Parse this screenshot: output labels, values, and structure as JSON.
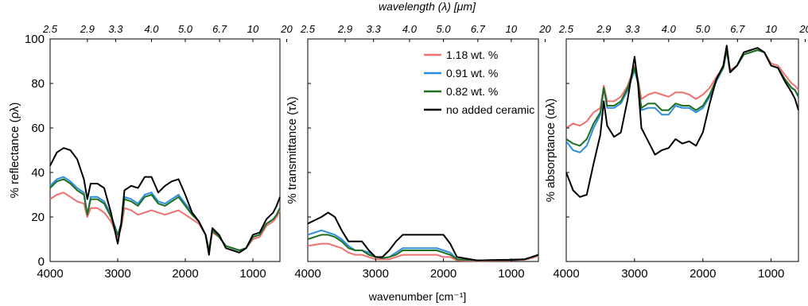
{
  "figure": {
    "top_axis_title": "wavelength (λ) [μm]",
    "bottom_axis_title": "wavenumber [cm⁻¹]"
  },
  "chart_data": [
    {
      "type": "line",
      "ylabel": "% reflectance (ρλ)",
      "xlabel": "wavenumber [cm⁻¹]",
      "xlim": [
        4000,
        600
      ],
      "ylim": [
        0,
        100
      ],
      "xticks": [
        4000,
        3000,
        2000,
        1000
      ],
      "yticks": [
        0,
        20,
        40,
        60,
        80,
        100
      ],
      "top_ticks": [
        "2.5",
        "2.9",
        "3.3",
        "4.0",
        "5.0",
        "6.7",
        "10",
        "20"
      ],
      "series": [
        {
          "name": "1.18 wt. %",
          "color": "#f07070",
          "x": [
            4000,
            3900,
            3800,
            3700,
            3600,
            3500,
            3450,
            3400,
            3300,
            3200,
            3100,
            3000,
            2950,
            2900,
            2800,
            2700,
            2600,
            2500,
            2400,
            2300,
            2200,
            2100,
            2000,
            1900,
            1800,
            1700,
            1650,
            1600,
            1500,
            1400,
            1300,
            1200,
            1100,
            1000,
            900,
            800,
            700,
            650,
            600
          ],
          "y": [
            28,
            30,
            31,
            29,
            27,
            26,
            20,
            24,
            24,
            22,
            18,
            11,
            15,
            24,
            23,
            21,
            22,
            23,
            22,
            21,
            22,
            23,
            21,
            19,
            17,
            12,
            5,
            13,
            11,
            7,
            6,
            5,
            6,
            10,
            11,
            16,
            18,
            20,
            23
          ]
        },
        {
          "name": "0.91 wt. %",
          "color": "#2a8fdf",
          "x": [
            4000,
            3900,
            3800,
            3700,
            3600,
            3500,
            3450,
            3400,
            3300,
            3200,
            3100,
            3000,
            2950,
            2900,
            2800,
            2700,
            2600,
            2500,
            2400,
            2300,
            2200,
            2100,
            2000,
            1900,
            1800,
            1700,
            1650,
            1600,
            1500,
            1400,
            1300,
            1200,
            1100,
            1000,
            900,
            800,
            700,
            650,
            600
          ],
          "y": [
            34,
            37,
            38,
            36,
            33,
            31,
            21,
            29,
            29,
            27,
            21,
            12,
            17,
            29,
            28,
            26,
            30,
            31,
            27,
            26,
            28,
            30,
            26,
            22,
            18,
            12,
            5,
            14,
            11,
            7,
            6,
            5,
            6,
            11,
            12,
            17,
            19,
            21,
            24
          ]
        },
        {
          "name": "0.82 wt. %",
          "color": "#1f6e1f",
          "x": [
            4000,
            3900,
            3800,
            3700,
            3600,
            3500,
            3450,
            3400,
            3300,
            3200,
            3100,
            3000,
            2950,
            2900,
            2800,
            2700,
            2600,
            2500,
            2400,
            2300,
            2200,
            2100,
            2000,
            1900,
            1800,
            1700,
            1650,
            1600,
            1500,
            1400,
            1300,
            1200,
            1100,
            1000,
            900,
            800,
            700,
            650,
            600
          ],
          "y": [
            33,
            36,
            37,
            35,
            32,
            30,
            21,
            28,
            28,
            26,
            20,
            12,
            16,
            28,
            27,
            25,
            29,
            30,
            26,
            25,
            27,
            29,
            25,
            21,
            18,
            12,
            5,
            14,
            11,
            7,
            6,
            5,
            6,
            11,
            12,
            17,
            19,
            21,
            24
          ]
        },
        {
          "name": "no added ceramic",
          "color": "#000000",
          "x": [
            4000,
            3900,
            3800,
            3700,
            3600,
            3500,
            3450,
            3400,
            3300,
            3200,
            3100,
            3000,
            2950,
            2900,
            2800,
            2700,
            2600,
            2500,
            2400,
            2300,
            2200,
            2100,
            2000,
            1900,
            1800,
            1700,
            1650,
            1600,
            1500,
            1400,
            1300,
            1200,
            1100,
            1000,
            900,
            800,
            700,
            650,
            600
          ],
          "y": [
            43,
            49,
            51,
            50,
            46,
            37,
            28,
            35,
            35,
            33,
            22,
            8,
            17,
            32,
            34,
            33,
            38,
            38,
            31,
            34,
            36,
            37,
            30,
            22,
            18,
            12,
            3,
            15,
            12,
            6,
            5,
            4,
            6,
            12,
            13,
            19,
            22,
            25,
            29
          ]
        }
      ]
    },
    {
      "type": "line",
      "ylabel": "% transmittance (τλ)",
      "xlabel": "wavenumber [cm⁻¹]",
      "xlim": [
        4000,
        600
      ],
      "ylim": [
        0,
        100
      ],
      "xticks": [
        4000,
        3000,
        2000,
        1000
      ],
      "top_ticks": [
        "2.5",
        "2.9",
        "3.3",
        "4.0",
        "5.0",
        "6.7",
        "10",
        "20"
      ],
      "legend": "top-right",
      "series": [
        {
          "name": "1.18 wt. %",
          "color": "#f07070",
          "x": [
            4000,
            3800,
            3700,
            3600,
            3500,
            3400,
            3300,
            3200,
            3100,
            3000,
            2900,
            2800,
            2700,
            2600,
            2500,
            2400,
            2300,
            2200,
            2100,
            2000,
            1900,
            1800,
            1500,
            1000,
            800,
            700,
            600
          ],
          "y": [
            7,
            8,
            8,
            7,
            6,
            4,
            3,
            3,
            2,
            1,
            1,
            1,
            2,
            3,
            3,
            3,
            3,
            3,
            3,
            2,
            2,
            0.5,
            0.3,
            0.5,
            0.8,
            1.5,
            2.5
          ]
        },
        {
          "name": "0.91 wt. %",
          "color": "#2a8fdf",
          "x": [
            4000,
            3800,
            3700,
            3600,
            3500,
            3400,
            3300,
            3200,
            3100,
            3000,
            2900,
            2800,
            2700,
            2600,
            2500,
            2400,
            2300,
            2200,
            2100,
            2000,
            1900,
            1800,
            1500,
            1000,
            800,
            700,
            600
          ],
          "y": [
            12,
            14,
            13,
            12,
            10,
            7,
            5,
            5,
            4,
            2,
            1.5,
            2,
            4,
            6,
            6,
            6,
            6,
            6,
            6,
            5,
            4,
            1,
            0.5,
            0.7,
            1,
            2,
            3
          ]
        },
        {
          "name": "0.82 wt. %",
          "color": "#1f6e1f",
          "x": [
            4000,
            3800,
            3700,
            3600,
            3500,
            3400,
            3300,
            3200,
            3100,
            3000,
            2900,
            2800,
            2700,
            2600,
            2500,
            2400,
            2300,
            2200,
            2100,
            2000,
            1900,
            1800,
            1500,
            1000,
            800,
            700,
            600
          ],
          "y": [
            10,
            12,
            12,
            11,
            9,
            6,
            5,
            5,
            3,
            2,
            1.5,
            2,
            3,
            5,
            5,
            5,
            5,
            5,
            5,
            4,
            3,
            1,
            0.5,
            0.7,
            1,
            2,
            3
          ]
        },
        {
          "name": "no added ceramic",
          "color": "#000000",
          "x": [
            4000,
            3800,
            3700,
            3600,
            3500,
            3400,
            3300,
            3200,
            3100,
            3000,
            2900,
            2800,
            2700,
            2600,
            2500,
            2400,
            2300,
            2200,
            2100,
            2000,
            1900,
            1800,
            1500,
            1000,
            800,
            700,
            600
          ],
          "y": [
            17,
            20,
            22,
            20,
            14,
            9,
            9,
            9,
            5,
            2,
            2,
            5,
            9,
            12,
            12,
            12,
            12,
            12,
            12,
            12,
            8,
            2,
            0.5,
            0.8,
            1,
            2,
            3
          ]
        }
      ]
    },
    {
      "type": "line",
      "ylabel": "% absorptance (αλ)",
      "xlabel": "wavenumber [cm⁻¹]",
      "xlim": [
        4000,
        600
      ],
      "ylim": [
        0,
        100
      ],
      "xticks": [
        4000,
        3000,
        2000,
        1000
      ],
      "top_ticks": [
        "2.5",
        "2.9",
        "3.3",
        "4.0",
        "5.0",
        "6.7",
        "10",
        "20"
      ],
      "series": [
        {
          "name": "1.18 wt. %",
          "color": "#f07070",
          "x": [
            4000,
            3900,
            3800,
            3700,
            3600,
            3500,
            3450,
            3400,
            3300,
            3200,
            3100,
            3000,
            2950,
            2900,
            2800,
            2700,
            2600,
            2500,
            2400,
            2300,
            2200,
            2100,
            2000,
            1900,
            1800,
            1700,
            1650,
            1600,
            1500,
            1400,
            1300,
            1200,
            1100,
            1000,
            900,
            800,
            700,
            650,
            600
          ],
          "y": [
            60,
            62,
            61,
            63,
            67,
            69,
            79,
            72,
            72,
            74,
            79,
            88,
            82,
            73,
            75,
            76,
            75,
            74,
            76,
            76,
            75,
            73,
            75,
            78,
            83,
            87,
            95,
            86,
            88,
            93,
            94,
            95,
            94,
            89,
            88,
            84,
            80,
            79,
            77
          ]
        },
        {
          "name": "0.91 wt. %",
          "color": "#2a8fdf",
          "x": [
            4000,
            3900,
            3800,
            3700,
            3600,
            3500,
            3450,
            3400,
            3300,
            3200,
            3100,
            3000,
            2950,
            2900,
            2800,
            2700,
            2600,
            2500,
            2400,
            2300,
            2200,
            2100,
            2000,
            1900,
            1800,
            1700,
            1650,
            1600,
            1500,
            1400,
            1300,
            1200,
            1100,
            1000,
            900,
            800,
            700,
            650,
            600
          ],
          "y": [
            54,
            50,
            49,
            52,
            60,
            66,
            78,
            69,
            69,
            71,
            77,
            86,
            80,
            68,
            69,
            69,
            66,
            66,
            70,
            69,
            69,
            67,
            69,
            74,
            81,
            87,
            95,
            85,
            88,
            93,
            94,
            95,
            94,
            88,
            87,
            82,
            78,
            77,
            74
          ]
        },
        {
          "name": "0.82 wt. %",
          "color": "#1f6e1f",
          "x": [
            4000,
            3900,
            3800,
            3700,
            3600,
            3500,
            3450,
            3400,
            3300,
            3200,
            3100,
            3000,
            2950,
            2900,
            2800,
            2700,
            2600,
            2500,
            2400,
            2300,
            2200,
            2100,
            2000,
            1900,
            1800,
            1700,
            1650,
            1600,
            1500,
            1400,
            1300,
            1200,
            1100,
            1000,
            900,
            800,
            700,
            650,
            600
          ],
          "y": [
            55,
            53,
            52,
            55,
            62,
            67,
            78,
            70,
            70,
            72,
            78,
            87,
            81,
            69,
            71,
            71,
            68,
            68,
            71,
            70,
            70,
            68,
            70,
            75,
            82,
            87,
            95,
            85,
            88,
            93,
            94,
            95,
            94,
            88,
            87,
            82,
            78,
            77,
            74
          ]
        },
        {
          "name": "no added ceramic",
          "color": "#000000",
          "x": [
            4000,
            3900,
            3800,
            3700,
            3600,
            3500,
            3450,
            3400,
            3300,
            3200,
            3100,
            3000,
            2950,
            2900,
            2800,
            2700,
            2600,
            2500,
            2400,
            2300,
            2200,
            2100,
            2000,
            1900,
            1800,
            1700,
            1650,
            1600,
            1500,
            1400,
            1300,
            1200,
            1100,
            1000,
            900,
            800,
            700,
            650,
            600
          ],
          "y": [
            40,
            32,
            29,
            30,
            44,
            57,
            72,
            61,
            56,
            58,
            73,
            92,
            80,
            60,
            54,
            48,
            50,
            51,
            55,
            53,
            54,
            52,
            58,
            71,
            82,
            88,
            97,
            85,
            88,
            94,
            95,
            96,
            94,
            88,
            87,
            81,
            76,
            73,
            68
          ]
        }
      ]
    }
  ]
}
